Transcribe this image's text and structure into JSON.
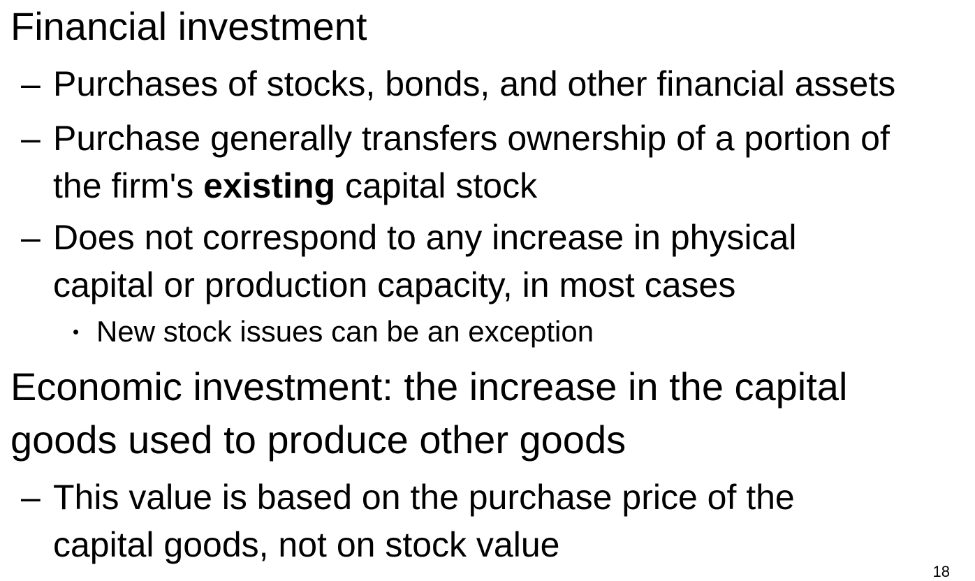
{
  "slide": {
    "heading_financial": "Financial investment",
    "financial_points": [
      "Purchases of stocks, bonds, and other financial assets",
      {
        "before": "Purchase generally transfers ownership of a portion of",
        "line2_start": "the firm's ",
        "bold": "existing",
        "line2_end": " capital stock"
      },
      {
        "line1": "Does not correspond to any increase in physical",
        "line2": "capital or production capacity, in most cases"
      }
    ],
    "sub_point": "New stock issues can be an exception",
    "heading_economic_line1": "Economic investment: the increase in the capital",
    "heading_economic_line2": "goods used to produce other goods",
    "economic_point_line1": "This value is based on the purchase price of the",
    "economic_point_line2": "capital goods, not on stock value",
    "dash_symbol": "–",
    "bullet_symbol": "•",
    "page_number": "18"
  }
}
